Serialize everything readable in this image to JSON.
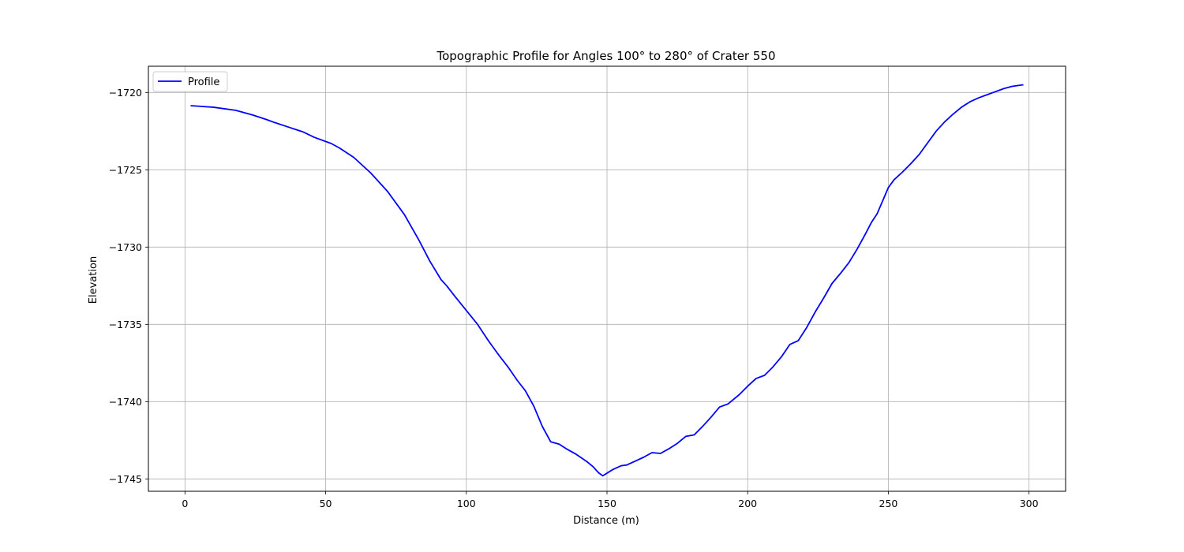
{
  "chart_data": {
    "type": "line",
    "title": "Topographic Profile for Angles 100° to 280° of Crater 550",
    "xlabel": "Distance (m)",
    "ylabel": "Elevation",
    "xlim": [
      -13,
      313
    ],
    "ylim": [
      -1745.8,
      -1718.3
    ],
    "xticks": [
      0,
      50,
      100,
      150,
      200,
      250,
      300
    ],
    "xtick_labels": [
      "0",
      "50",
      "100",
      "150",
      "200",
      "250",
      "300"
    ],
    "yticks": [
      -1720,
      -1725,
      -1730,
      -1735,
      -1740,
      -1745
    ],
    "ytick_labels": [
      "−1720",
      "−1725",
      "−1730",
      "−1735",
      "−1740",
      "−1745"
    ],
    "grid": true,
    "legend_position": "top-left",
    "series": [
      {
        "name": "Profile",
        "color": "#0000ff",
        "x": [
          2,
          10,
          18,
          24,
          29,
          32,
          37,
          42,
          46,
          52,
          55,
          60,
          66,
          72,
          78,
          83,
          87,
          91,
          93,
          96,
          100,
          104,
          108,
          112,
          115,
          118,
          121,
          124,
          127,
          130,
          133,
          136,
          139,
          143,
          145,
          147,
          148.5,
          152,
          155,
          157,
          160,
          163,
          166,
          169,
          172,
          175,
          178,
          181,
          184,
          187,
          190,
          193,
          197,
          200,
          203,
          206,
          209,
          212,
          215,
          218,
          221,
          224,
          227,
          230,
          233,
          236,
          239,
          242,
          244,
          246,
          248,
          250,
          252,
          255,
          258,
          261,
          264,
          267,
          270,
          273,
          276,
          279,
          282,
          285,
          288,
          291,
          294,
          298
        ],
        "y": [
          -1720.85,
          -1720.95,
          -1721.15,
          -1721.45,
          -1721.75,
          -1721.95,
          -1722.25,
          -1722.55,
          -1722.9,
          -1723.3,
          -1723.6,
          -1724.2,
          -1725.2,
          -1726.4,
          -1727.9,
          -1729.5,
          -1730.9,
          -1732.1,
          -1732.5,
          -1733.2,
          -1734.1,
          -1735.0,
          -1736.1,
          -1737.1,
          -1737.8,
          -1738.6,
          -1739.3,
          -1740.3,
          -1741.6,
          -1742.6,
          -1742.75,
          -1743.1,
          -1743.4,
          -1743.9,
          -1744.2,
          -1744.6,
          -1744.8,
          -1744.4,
          -1744.15,
          -1744.1,
          -1743.85,
          -1743.6,
          -1743.3,
          -1743.35,
          -1743.05,
          -1742.7,
          -1742.25,
          -1742.15,
          -1741.6,
          -1741.0,
          -1740.35,
          -1740.15,
          -1739.55,
          -1739.0,
          -1738.5,
          -1738.3,
          -1737.75,
          -1737.1,
          -1736.3,
          -1736.05,
          -1735.2,
          -1734.2,
          -1733.3,
          -1732.35,
          -1731.7,
          -1731.0,
          -1730.1,
          -1729.1,
          -1728.4,
          -1727.85,
          -1727.0,
          -1726.15,
          -1725.65,
          -1725.15,
          -1724.6,
          -1724.0,
          -1723.25,
          -1722.5,
          -1721.9,
          -1721.4,
          -1720.95,
          -1720.6,
          -1720.35,
          -1720.15,
          -1719.95,
          -1719.75,
          -1719.6,
          -1719.5
        ]
      }
    ]
  }
}
